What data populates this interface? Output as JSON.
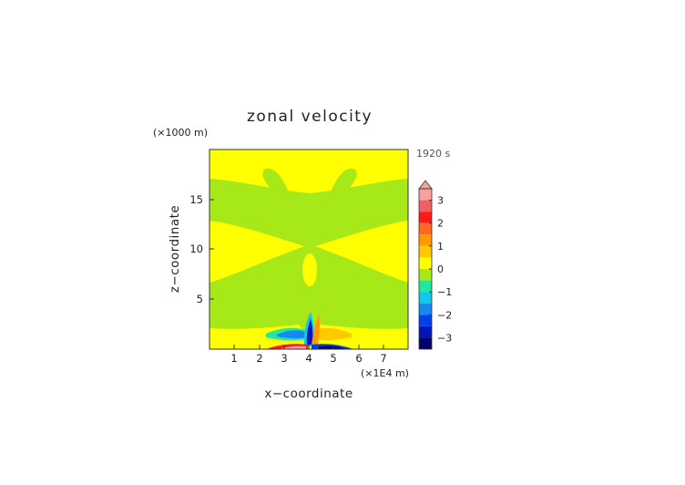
{
  "chart_data": {
    "type": "heatmap",
    "title": "zonal velocity",
    "time_label": "1920 s",
    "xlabel": "x−coordinate",
    "ylabel": "z−coordinate",
    "x_unit": "(×1E4 m)",
    "y_unit": "(×1000 m)",
    "xlim": [
      0,
      8
    ],
    "ylim": [
      0,
      20
    ],
    "x_ticks": [
      1,
      2,
      3,
      4,
      5,
      6,
      7
    ],
    "y_ticks": [
      5,
      10,
      15
    ],
    "x_tick_labels": [
      "1",
      "2",
      "3",
      "4",
      "5",
      "6",
      "7"
    ],
    "y_tick_labels": [
      "5",
      "10",
      "15"
    ],
    "colorbar": {
      "range": [
        -3.5,
        3.5
      ],
      "extend": "max",
      "tick_values": [
        3,
        2,
        1,
        0,
        -1,
        -2,
        -3
      ],
      "tick_labels": [
        "3",
        "2",
        "1",
        "0",
        "−1",
        "−2",
        "−3"
      ],
      "levels": [
        {
          "from": 3.0,
          "to": 3.5,
          "color": "#f8a0a0"
        },
        {
          "from": 2.5,
          "to": 3.0,
          "color": "#f06060"
        },
        {
          "from": 2.0,
          "to": 2.5,
          "color": "#ff1a1a"
        },
        {
          "from": 1.5,
          "to": 2.0,
          "color": "#ff6820"
        },
        {
          "from": 1.0,
          "to": 1.5,
          "color": "#ff9a00"
        },
        {
          "from": 0.5,
          "to": 1.0,
          "color": "#ffc800"
        },
        {
          "from": 0.0,
          "to": 0.5,
          "color": "#ffff00"
        },
        {
          "from": -0.5,
          "to": 0.0,
          "color": "#a6e818"
        },
        {
          "from": -1.0,
          "to": -0.5,
          "color": "#20e8a0"
        },
        {
          "from": -1.5,
          "to": -1.0,
          "color": "#10c8e8"
        },
        {
          "from": -2.0,
          "to": -1.5,
          "color": "#1888f0"
        },
        {
          "from": -2.5,
          "to": -2.0,
          "color": "#0040e8"
        },
        {
          "from": -3.0,
          "to": -2.5,
          "color": "#0018b8"
        },
        {
          "from": -3.5,
          "to": -3.0,
          "color": "#000070"
        }
      ]
    },
    "background_value_color": "#ffff00",
    "regions": [
      {
        "label": "near-zero negative (green) areas",
        "value_range": [
          -0.5,
          0
        ],
        "color": "#a6e818"
      },
      {
        "label": "near-surface positive core",
        "value_range": [
          1,
          3.5
        ],
        "x_range": [
          2.8,
          4.0
        ],
        "z_range": [
          0,
          1
        ]
      },
      {
        "label": "near-surface negative core",
        "value_range": [
          -3.5,
          -1
        ],
        "x_range": [
          3.3,
          4.2
        ],
        "z_range": [
          0,
          3.5
        ]
      }
    ]
  }
}
